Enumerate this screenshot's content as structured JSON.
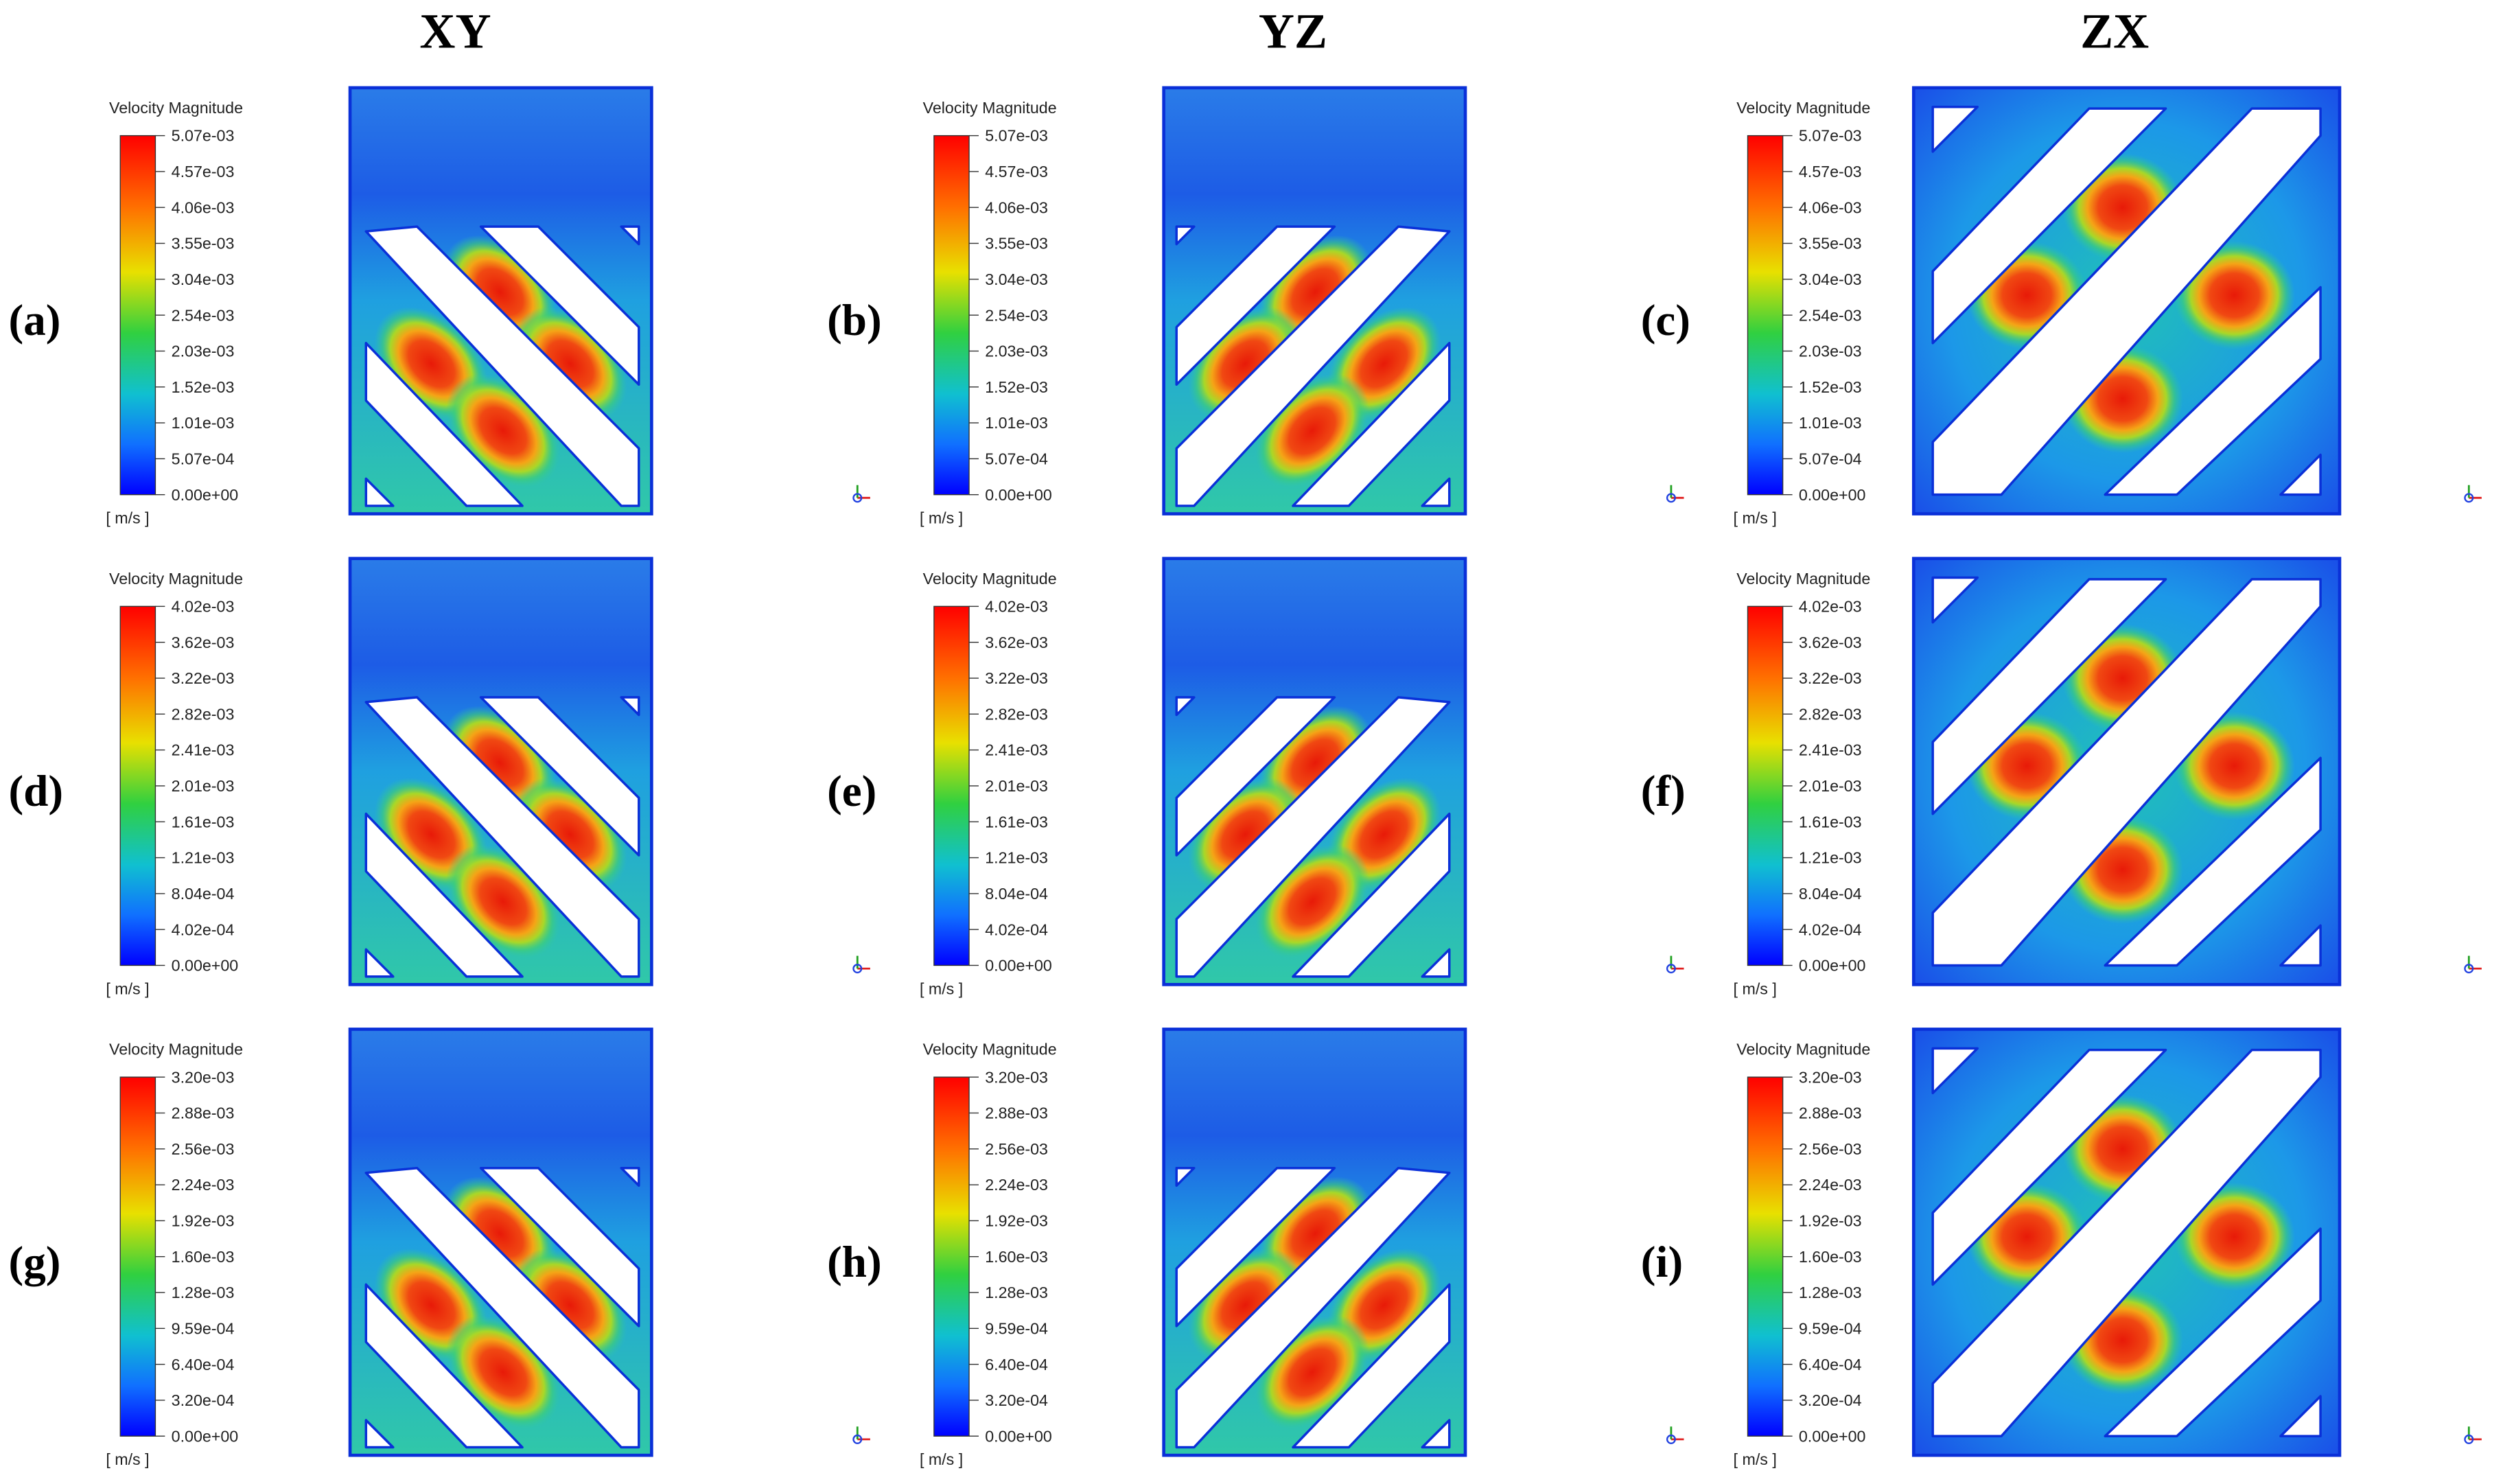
{
  "columns": [
    "XY",
    "YZ",
    "ZX"
  ],
  "colorbar": {
    "title": "Velocity Magnitude",
    "unit": "[ m/s ]"
  },
  "rows": [
    {
      "ticks": [
        "5.07e-03",
        "4.57e-03",
        "4.06e-03",
        "3.55e-03",
        "3.04e-03",
        "2.54e-03",
        "2.03e-03",
        "1.52e-03",
        "1.01e-03",
        "5.07e-04",
        "0.00e+00"
      ]
    },
    {
      "ticks": [
        "4.02e-03",
        "3.62e-03",
        "3.22e-03",
        "2.82e-03",
        "2.41e-03",
        "2.01e-03",
        "1.61e-03",
        "1.21e-03",
        "8.04e-04",
        "4.02e-04",
        "0.00e+00"
      ]
    },
    {
      "ticks": [
        "3.20e-03",
        "2.88e-03",
        "2.56e-03",
        "2.24e-03",
        "1.92e-03",
        "1.60e-03",
        "1.28e-03",
        "9.59e-04",
        "6.40e-04",
        "3.20e-04",
        "0.00e+00"
      ]
    }
  ],
  "panel_labels": [
    "(a)",
    "(b)",
    "(c)",
    "(d)",
    "(e)",
    "(f)",
    "(g)",
    "(h)",
    "(i)"
  ]
}
